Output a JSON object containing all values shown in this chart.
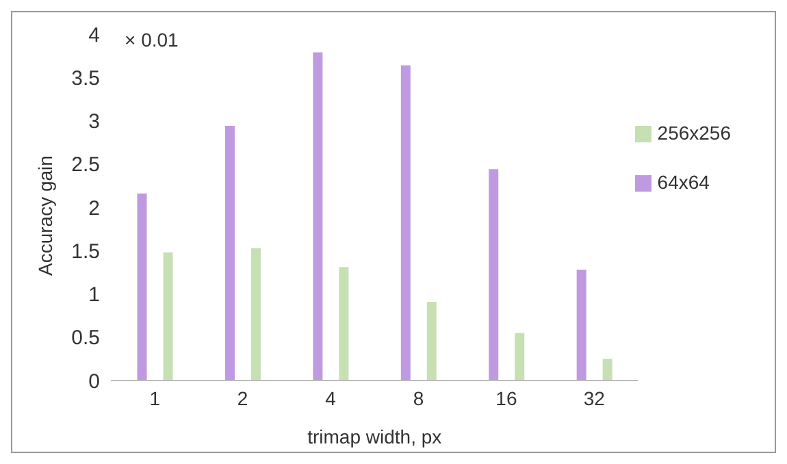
{
  "chart_data": {
    "type": "bar",
    "xlabel": "trimap width, px",
    "ylabel": "Accuracy gain",
    "annotations": [
      "× 0.01"
    ],
    "categories": [
      "1",
      "2",
      "4",
      "8",
      "16",
      "32"
    ],
    "series": [
      {
        "name": "64x64",
        "color": "#c09ae0",
        "values": [
          2.16,
          2.94,
          3.79,
          3.64,
          2.44,
          1.28
        ]
      },
      {
        "name": "256x256",
        "color": "#c6e0b4",
        "values": [
          1.48,
          1.53,
          1.31,
          0.91,
          0.55,
          0.25
        ]
      }
    ],
    "ylim": [
      0,
      4
    ],
    "yticks": [
      0,
      0.5,
      1,
      1.5,
      2,
      2.5,
      3,
      3.5,
      4
    ],
    "grid": false,
    "legend": "right"
  }
}
